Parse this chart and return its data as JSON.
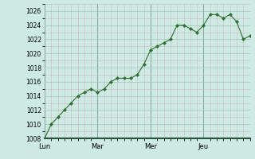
{
  "background_color": "#cdeae4",
  "line_color": "#2d6e2d",
  "marker_color": "#2d6e2d",
  "grid_color_major": "#aac8c0",
  "grid_color_minor": "#bcd8d2",
  "ylim": [
    1008,
    1027
  ],
  "yticks": [
    1008,
    1010,
    1012,
    1014,
    1016,
    1018,
    1020,
    1022,
    1024,
    1026
  ],
  "day_labels": [
    "Lun",
    "Mar",
    "Mer",
    "Jeu"
  ],
  "day_positions": [
    0,
    8,
    16,
    24
  ],
  "x_values": [
    0,
    1,
    2,
    3,
    4,
    5,
    6,
    7,
    8,
    9,
    10,
    11,
    12,
    13,
    14,
    15,
    16,
    17,
    18,
    19,
    20,
    21,
    22,
    23,
    24,
    25,
    26,
    27,
    28,
    29,
    30,
    31
  ],
  "y_values": [
    1008,
    1010,
    1011,
    1012,
    1013,
    1014,
    1014.5,
    1015,
    1014.5,
    1015,
    1016,
    1016.5,
    1016.5,
    1016.5,
    1017,
    1018.5,
    1020.5,
    1021,
    1021.5,
    1022,
    1024,
    1024,
    1023.5,
    1023,
    1024,
    1025.5,
    1025.5,
    1025,
    1025.5,
    1024.5,
    1022,
    1022.5
  ]
}
